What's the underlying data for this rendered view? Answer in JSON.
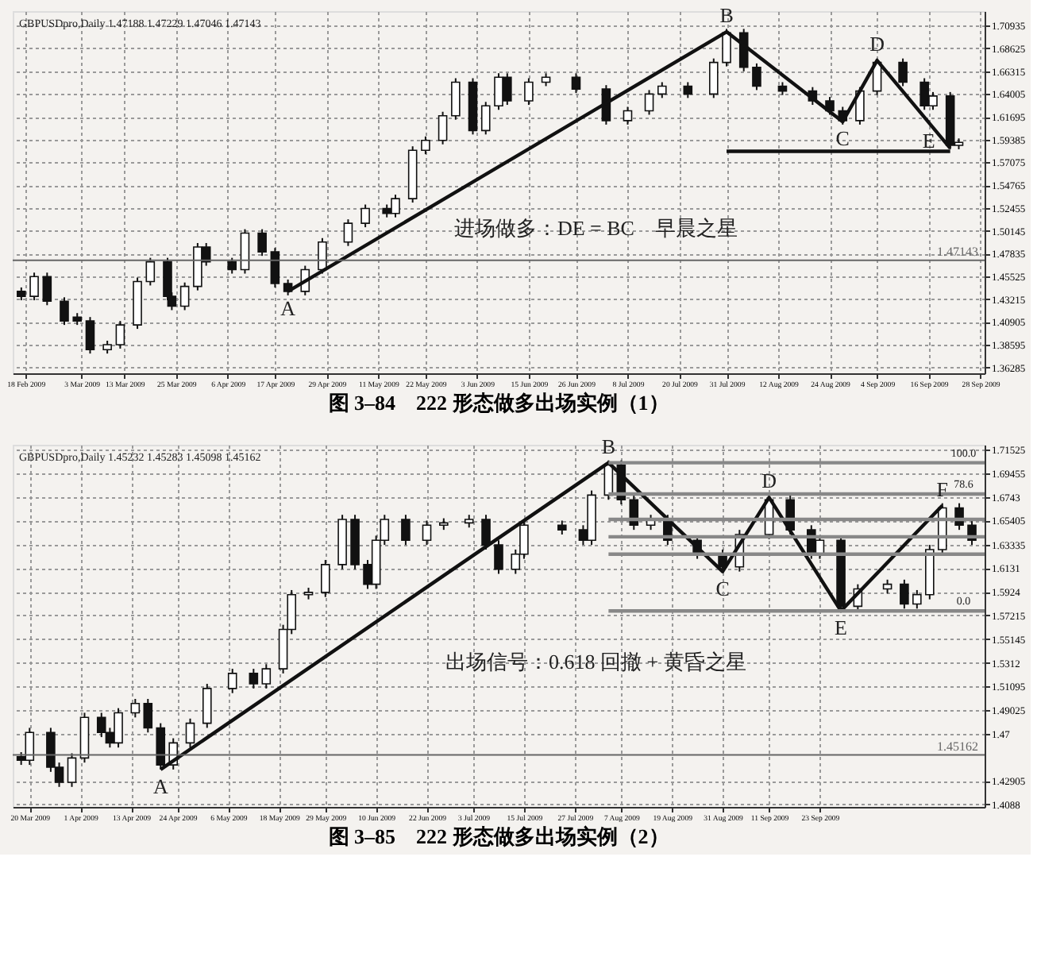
{
  "chart_data": [
    {
      "type": "candlestick",
      "title": "图 3–84　222 形态做多出场实例（1）",
      "color": "#111111",
      "grid": true,
      "annotations": [
        "GBPUSDpro,Daily 1.47188 1.47229 1.47046 1.47143",
        "进场做多：DE = BC　早晨之星",
        {
          "text": "A",
          "x": "2009-04-20",
          "y": 1.44
        },
        {
          "text": "B",
          "x": "2009-07-31",
          "y": 1.703
        },
        {
          "text": "C",
          "x": "2009-08-27",
          "y": 1.612
        },
        {
          "text": "D",
          "x": "2009-09-04",
          "y": 1.674
        },
        {
          "text": "E",
          "x": "2009-09-16",
          "y": 1.582
        }
      ],
      "x": [
        "2009-02-17",
        "2009-02-20",
        "2009-02-23",
        "2009-02-27",
        "2009-03-02",
        "2009-03-05",
        "2009-03-09",
        "2009-03-12",
        "2009-03-16",
        "2009-03-19",
        "2009-03-23",
        "2009-03-24",
        "2009-03-27",
        "2009-03-30",
        "2009-04-01",
        "2009-04-07",
        "2009-04-10",
        "2009-04-14",
        "2009-04-17",
        "2009-04-20",
        "2009-04-24",
        "2009-04-28",
        "2009-05-04",
        "2009-05-08",
        "2009-05-13",
        "2009-05-15",
        "2009-05-19",
        "2009-05-22",
        "2009-05-26",
        "2009-05-29",
        "2009-06-02",
        "2009-06-05",
        "2009-06-08",
        "2009-06-10",
        "2009-06-15",
        "2009-06-19",
        "2009-06-26",
        "2009-07-03",
        "2009-07-08",
        "2009-07-13",
        "2009-07-16",
        "2009-07-22",
        "2009-07-28",
        "2009-07-31",
        "2009-08-04",
        "2009-08-07",
        "2009-08-13",
        "2009-08-20",
        "2009-08-24",
        "2009-08-27",
        "2009-08-31",
        "2009-09-04",
        "2009-09-10",
        "2009-09-15",
        "2009-09-17",
        "2009-09-21",
        "2009-09-23"
      ],
      "ohlc": [
        [
          1.44,
          1.444,
          1.431,
          1.435
        ],
        [
          1.435,
          1.459,
          1.431,
          1.455
        ],
        [
          1.455,
          1.459,
          1.426,
          1.43
        ],
        [
          1.43,
          1.434,
          1.406,
          1.41
        ],
        [
          1.414,
          1.418,
          1.406,
          1.41
        ],
        [
          1.41,
          1.414,
          1.377,
          1.381
        ],
        [
          1.381,
          1.39,
          1.377,
          1.386
        ],
        [
          1.386,
          1.41,
          1.382,
          1.406
        ],
        [
          1.406,
          1.454,
          1.402,
          1.45
        ],
        [
          1.45,
          1.474,
          1.446,
          1.47
        ],
        [
          1.47,
          1.474,
          1.431,
          1.435
        ],
        [
          1.435,
          1.439,
          1.421,
          1.425
        ],
        [
          1.425,
          1.449,
          1.421,
          1.445
        ],
        [
          1.445,
          1.489,
          1.441,
          1.485
        ],
        [
          1.485,
          1.489,
          1.466,
          1.47
        ],
        [
          1.47,
          1.474,
          1.458,
          1.462
        ],
        [
          1.462,
          1.503,
          1.458,
          1.499
        ],
        [
          1.499,
          1.503,
          1.476,
          1.48
        ],
        [
          1.48,
          1.484,
          1.444,
          1.448
        ],
        [
          1.448,
          1.452,
          1.436,
          1.44
        ],
        [
          1.44,
          1.466,
          1.436,
          1.462
        ],
        [
          1.462,
          1.494,
          1.458,
          1.49
        ],
        [
          1.49,
          1.513,
          1.486,
          1.509
        ],
        [
          1.509,
          1.528,
          1.505,
          1.524
        ],
        [
          1.524,
          1.528,
          1.515,
          1.519
        ],
        [
          1.519,
          1.538,
          1.515,
          1.534
        ],
        [
          1.534,
          1.587,
          1.53,
          1.583
        ],
        [
          1.583,
          1.597,
          1.579,
          1.593
        ],
        [
          1.593,
          1.622,
          1.589,
          1.618
        ],
        [
          1.618,
          1.656,
          1.614,
          1.652
        ],
        [
          1.652,
          1.656,
          1.599,
          1.603
        ],
        [
          1.603,
          1.632,
          1.599,
          1.628
        ],
        [
          1.628,
          1.661,
          1.624,
          1.657
        ],
        [
          1.657,
          1.661,
          1.629,
          1.633
        ],
        [
          1.633,
          1.656,
          1.629,
          1.652
        ],
        [
          1.652,
          1.661,
          1.648,
          1.657
        ],
        [
          1.657,
          1.661,
          1.641,
          1.645
        ],
        [
          1.645,
          1.649,
          1.609,
          1.613
        ],
        [
          1.613,
          1.627,
          1.609,
          1.623
        ],
        [
          1.623,
          1.644,
          1.619,
          1.64
        ],
        [
          1.64,
          1.652,
          1.636,
          1.648
        ],
        [
          1.648,
          1.652,
          1.636,
          1.64
        ],
        [
          1.64,
          1.676,
          1.636,
          1.672
        ],
        [
          1.672,
          1.706,
          1.668,
          1.702
        ],
        [
          1.702,
          1.706,
          1.663,
          1.667
        ],
        [
          1.667,
          1.671,
          1.644,
          1.648
        ],
        [
          1.648,
          1.652,
          1.639,
          1.643
        ],
        [
          1.643,
          1.647,
          1.629,
          1.633
        ],
        [
          1.633,
          1.637,
          1.619,
          1.623
        ],
        [
          1.623,
          1.627,
          1.609,
          1.613
        ],
        [
          1.613,
          1.647,
          1.609,
          1.643
        ],
        [
          1.643,
          1.676,
          1.639,
          1.672
        ],
        [
          1.672,
          1.676,
          1.648,
          1.652
        ],
        [
          1.652,
          1.656,
          1.624,
          1.628
        ],
        [
          1.628,
          1.642,
          1.624,
          1.638
        ],
        [
          1.638,
          1.642,
          1.584,
          1.588
        ],
        [
          1.588,
          1.595,
          1.584,
          1.591
        ]
      ],
      "series": [
        {
          "type": "line",
          "color": "#111111",
          "x": [
            "2009-04-20",
            "2009-07-31",
            "2009-08-27",
            "2009-09-04",
            "2009-09-21"
          ],
          "values": [
            1.44,
            1.703,
            1.612,
            1.674,
            1.585
          ]
        },
        {
          "type": "line",
          "color": "#111111",
          "x": [
            "2009-07-31",
            "2009-09-21"
          ],
          "values": [
            1.582,
            1.582
          ]
        }
      ],
      "ref_lines": [
        {
          "axis": "y",
          "value": 1.47143,
          "label": "1.47143",
          "color": "#666666"
        }
      ],
      "xlim": [
        "2009-02-15",
        "2009-09-29"
      ],
      "xticks": [
        {
          "value": "2009-02-18",
          "label": "18 Feb 2009"
        },
        {
          "value": "2009-03-03",
          "label": "3 Mar 2009"
        },
        {
          "value": "2009-03-13",
          "label": "13 Mar 2009"
        },
        {
          "value": "2009-03-25",
          "label": "25 Mar 2009"
        },
        {
          "value": "2009-04-06",
          "label": "6 Apr 2009"
        },
        {
          "value": "2009-04-17",
          "label": "17 Apr 2009"
        },
        {
          "value": "2009-04-29",
          "label": "29 Apr 2009"
        },
        {
          "value": "2009-05-11",
          "label": "11 May 2009"
        },
        {
          "value": "2009-05-22",
          "label": "22 May 2009"
        },
        {
          "value": "2009-06-03",
          "label": "3 Jun 2009"
        },
        {
          "value": "2009-06-15",
          "label": "15 Jun 2009"
        },
        {
          "value": "2009-06-26",
          "label": "26 Jun 2009"
        },
        {
          "value": "2009-07-08",
          "label": "8 Jul 2009"
        },
        {
          "value": "2009-07-20",
          "label": "20 Jul 2009"
        },
        {
          "value": "2009-07-31",
          "label": "31 Jul 2009"
        },
        {
          "value": "2009-08-12",
          "label": "12 Aug 2009"
        },
        {
          "value": "2009-08-24",
          "label": "24 Aug 2009"
        },
        {
          "value": "2009-09-04",
          "label": "4 Sep 2009"
        },
        {
          "value": "2009-09-16",
          "label": "16 Sep 2009"
        },
        {
          "value": "2009-09-28",
          "label": "28 Sep 2009"
        }
      ],
      "ylim": [
        1.357,
        1.724
      ],
      "yticks": [
        1.36285,
        1.38595,
        1.40905,
        1.43215,
        1.45525,
        1.47835,
        1.50145,
        1.52455,
        1.54765,
        1.57075,
        1.59385,
        1.61695,
        1.64005,
        1.66315,
        1.68625,
        1.70935
      ]
    },
    {
      "type": "candlestick",
      "title": "图 3–85　222 形态做多出场实例（2）",
      "color": "#111111",
      "grid": true,
      "annotations": [
        "GBPUSDpro,Daily 1.45232 1.45283 1.45098 1.45162",
        "出场信号：0.618 回撤 + 黄昏之星",
        {
          "text": "A",
          "x": "2009-04-20",
          "y": 1.439
        },
        {
          "text": "B",
          "x": "2009-08-04",
          "y": 1.704
        },
        {
          "text": "C",
          "x": "2009-08-31",
          "y": 1.61
        },
        {
          "text": "D",
          "x": "2009-09-11",
          "y": 1.674
        },
        {
          "text": "E",
          "x": "2009-09-28",
          "y": 1.576
        },
        {
          "text": "F",
          "x": "2009-10-22",
          "y": 1.667
        },
        {
          "text": "100.0",
          "x": "2009-10-27",
          "y": 1.704
        },
        {
          "text": "78.6",
          "x": "2009-10-27",
          "y": 1.677
        },
        {
          "text": "0.0",
          "x": "2009-10-27",
          "y": 1.576
        }
      ],
      "x": [
        "2009-03-18",
        "2009-03-20",
        "2009-03-25",
        "2009-03-27",
        "2009-03-30",
        "2009-04-02",
        "2009-04-06",
        "2009-04-08",
        "2009-04-10",
        "2009-04-14",
        "2009-04-17",
        "2009-04-20",
        "2009-04-23",
        "2009-04-27",
        "2009-05-01",
        "2009-05-07",
        "2009-05-12",
        "2009-05-15",
        "2009-05-19",
        "2009-05-21",
        "2009-05-25",
        "2009-05-29",
        "2009-06-02",
        "2009-06-05",
        "2009-06-08",
        "2009-06-10",
        "2009-06-12",
        "2009-06-17",
        "2009-06-22",
        "2009-06-26",
        "2009-07-02",
        "2009-07-06",
        "2009-07-09",
        "2009-07-13",
        "2009-07-15",
        "2009-07-24",
        "2009-07-29",
        "2009-07-31",
        "2009-08-04",
        "2009-08-07",
        "2009-08-10",
        "2009-08-14",
        "2009-08-18",
        "2009-08-25",
        "2009-08-31",
        "2009-09-04",
        "2009-09-11",
        "2009-09-16",
        "2009-09-21",
        "2009-09-23",
        "2009-09-28",
        "2009-10-02",
        "2009-10-09",
        "2009-10-13",
        "2009-10-16",
        "2009-10-19",
        "2009-10-22",
        "2009-10-26",
        "2009-10-29"
      ],
      "ohlc": [
        [
          1.45,
          1.454,
          1.443,
          1.447
        ],
        [
          1.447,
          1.475,
          1.443,
          1.471
        ],
        [
          1.471,
          1.475,
          1.437,
          1.441
        ],
        [
          1.441,
          1.445,
          1.424,
          1.428
        ],
        [
          1.428,
          1.453,
          1.424,
          1.449
        ],
        [
          1.449,
          1.488,
          1.445,
          1.484
        ],
        [
          1.484,
          1.488,
          1.467,
          1.471
        ],
        [
          1.471,
          1.475,
          1.458,
          1.462
        ],
        [
          1.462,
          1.492,
          1.458,
          1.488
        ],
        [
          1.488,
          1.5,
          1.484,
          1.496
        ],
        [
          1.496,
          1.5,
          1.471,
          1.475
        ],
        [
          1.475,
          1.479,
          1.439,
          1.443
        ],
        [
          1.443,
          1.466,
          1.439,
          1.462
        ],
        [
          1.462,
          1.483,
          1.458,
          1.479
        ],
        [
          1.479,
          1.513,
          1.475,
          1.509
        ],
        [
          1.509,
          1.526,
          1.505,
          1.522
        ],
        [
          1.522,
          1.526,
          1.509,
          1.513
        ],
        [
          1.513,
          1.53,
          1.509,
          1.526
        ],
        [
          1.526,
          1.564,
          1.522,
          1.56
        ],
        [
          1.56,
          1.594,
          1.556,
          1.59
        ],
        [
          1.59,
          1.596,
          1.586,
          1.592
        ],
        [
          1.592,
          1.62,
          1.588,
          1.616
        ],
        [
          1.616,
          1.659,
          1.612,
          1.655
        ],
        [
          1.655,
          1.659,
          1.612,
          1.616
        ],
        [
          1.616,
          1.62,
          1.595,
          1.599
        ],
        [
          1.599,
          1.641,
          1.595,
          1.637
        ],
        [
          1.637,
          1.659,
          1.633,
          1.655
        ],
        [
          1.655,
          1.659,
          1.633,
          1.637
        ],
        [
          1.637,
          1.654,
          1.633,
          1.65
        ],
        [
          1.65,
          1.656,
          1.646,
          1.652
        ],
        [
          1.652,
          1.659,
          1.648,
          1.655
        ],
        [
          1.655,
          1.659,
          1.629,
          1.633
        ],
        [
          1.633,
          1.637,
          1.608,
          1.612
        ],
        [
          1.612,
          1.629,
          1.608,
          1.625
        ],
        [
          1.625,
          1.654,
          1.621,
          1.65
        ],
        [
          1.65,
          1.654,
          1.642,
          1.646
        ],
        [
          1.646,
          1.65,
          1.633,
          1.637
        ],
        [
          1.637,
          1.68,
          1.633,
          1.676
        ],
        [
          1.676,
          1.706,
          1.672,
          1.702
        ],
        [
          1.702,
          1.706,
          1.668,
          1.672
        ],
        [
          1.672,
          1.676,
          1.646,
          1.65
        ],
        [
          1.65,
          1.659,
          1.646,
          1.655
        ],
        [
          1.655,
          1.659,
          1.633,
          1.637
        ],
        [
          1.637,
          1.641,
          1.621,
          1.625
        ],
        [
          1.625,
          1.629,
          1.61,
          1.614
        ],
        [
          1.614,
          1.646,
          1.61,
          1.642
        ],
        [
          1.642,
          1.676,
          1.638,
          1.672
        ],
        [
          1.672,
          1.676,
          1.642,
          1.646
        ],
        [
          1.646,
          1.65,
          1.621,
          1.625
        ],
        [
          1.625,
          1.641,
          1.621,
          1.637
        ],
        [
          1.637,
          1.641,
          1.576,
          1.58
        ],
        [
          1.58,
          1.599,
          1.576,
          1.595
        ],
        [
          1.595,
          1.603,
          1.591,
          1.599
        ],
        [
          1.599,
          1.603,
          1.578,
          1.582
        ],
        [
          1.582,
          1.594,
          1.578,
          1.59
        ],
        [
          1.59,
          1.633,
          1.586,
          1.629
        ],
        [
          1.629,
          1.669,
          1.625,
          1.665
        ],
        [
          1.665,
          1.669,
          1.646,
          1.65
        ],
        [
          1.65,
          1.654,
          1.633,
          1.637
        ]
      ],
      "series": [
        {
          "type": "line",
          "color": "#111111",
          "x": [
            "2009-04-20",
            "2009-08-04",
            "2009-08-31",
            "2009-09-11",
            "2009-09-28",
            "2009-10-22"
          ],
          "values": [
            1.439,
            1.704,
            1.61,
            1.674,
            1.576,
            1.667
          ]
        },
        {
          "type": "line",
          "color": "#888888",
          "x": [
            "2009-08-04",
            "2009-11-01"
          ],
          "values": [
            1.704,
            1.704
          ]
        },
        {
          "type": "line",
          "color": "#888888",
          "x": [
            "2009-08-04",
            "2009-11-01"
          ],
          "values": [
            1.677,
            1.677
          ]
        },
        {
          "type": "line",
          "color": "#888888",
          "x": [
            "2009-08-04",
            "2009-11-01"
          ],
          "values": [
            1.655,
            1.655
          ]
        },
        {
          "type": "line",
          "color": "#888888",
          "x": [
            "2009-08-04",
            "2009-11-01"
          ],
          "values": [
            1.64,
            1.64
          ]
        },
        {
          "type": "line",
          "color": "#888888",
          "x": [
            "2009-08-04",
            "2009-11-01"
          ],
          "values": [
            1.625,
            1.625
          ]
        },
        {
          "type": "line",
          "color": "#888888",
          "x": [
            "2009-08-04",
            "2009-11-01"
          ],
          "values": [
            1.576,
            1.576
          ]
        }
      ],
      "ref_lines": [
        {
          "axis": "y",
          "value": 1.45162,
          "label": "1.45162",
          "color": "#666666"
        }
      ],
      "xlim": [
        "2009-03-16",
        "2009-11-01"
      ],
      "xticks": [
        {
          "value": "2009-03-20",
          "label": "20 Mar 2009"
        },
        {
          "value": "2009-04-01",
          "label": "1 Apr 2009"
        },
        {
          "value": "2009-04-13",
          "label": "13 Apr 2009"
        },
        {
          "value": "2009-04-24",
          "label": "24 Apr 2009"
        },
        {
          "value": "2009-05-06",
          "label": "6 May 2009"
        },
        {
          "value": "2009-05-18",
          "label": "18 May 2009"
        },
        {
          "value": "2009-05-29",
          "label": "29 May 2009"
        },
        {
          "value": "2009-06-10",
          "label": "10 Jun 2009"
        },
        {
          "value": "2009-06-22",
          "label": "22 Jun 2009"
        },
        {
          "value": "2009-07-03",
          "label": "3 Jul 2009"
        },
        {
          "value": "2009-07-15",
          "label": "15 Jul 2009"
        },
        {
          "value": "2009-07-27",
          "label": "27 Jul 2009"
        },
        {
          "value": "2009-08-07",
          "label": "7 Aug 2009"
        },
        {
          "value": "2009-08-19",
          "label": "19 Aug 2009"
        },
        {
          "value": "2009-08-31",
          "label": "31 Aug 2009"
        },
        {
          "value": "2009-09-11",
          "label": "11 Sep 2009"
        },
        {
          "value": "2009-09-23",
          "label": "23 Sep 2009"
        }
      ],
      "ylim": [
        1.4067,
        1.7195
      ],
      "yticks": [
        1.4088,
        1.42905,
        1.47,
        1.49025,
        1.51095,
        1.5312,
        1.55145,
        1.57215,
        1.5924,
        1.6131,
        1.63335,
        1.65405,
        1.6743,
        1.69455,
        1.71525
      ]
    }
  ]
}
